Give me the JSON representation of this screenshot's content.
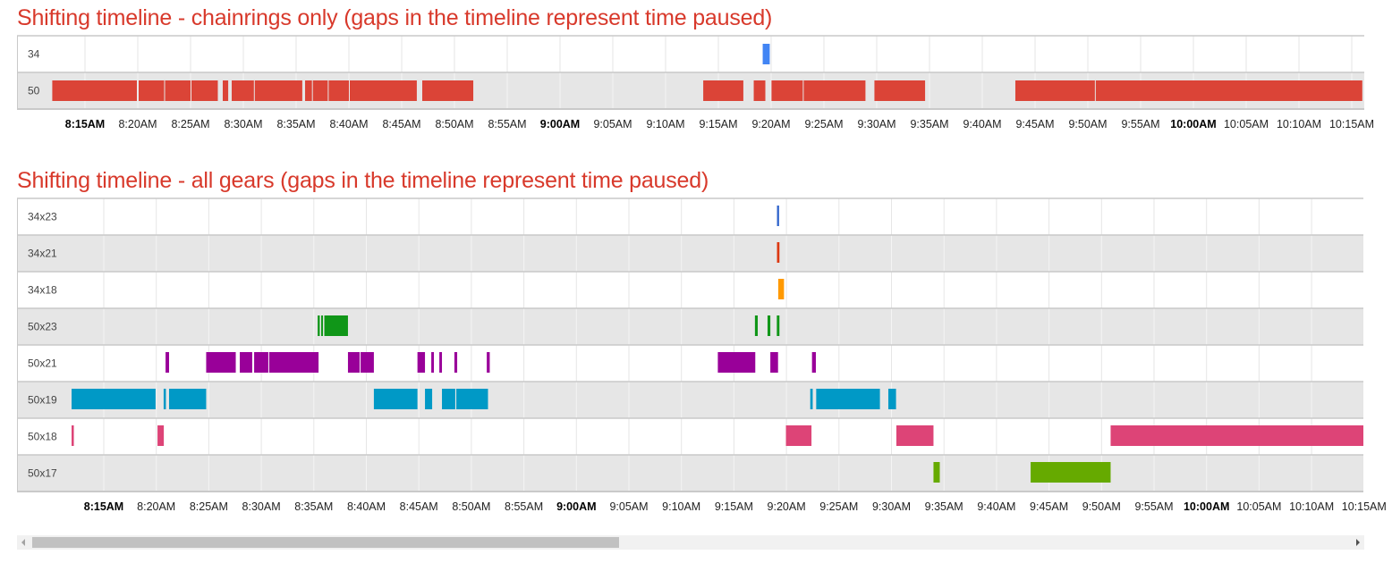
{
  "charts": [
    {
      "title": "Shifting timeline - chainrings only (gaps in the timeline represent time paused)",
      "rows": [
        {
          "label": "34",
          "color": "#4285f4",
          "bars": [
            [
              "9:19:12",
              "9:19:52"
            ]
          ]
        },
        {
          "label": "50",
          "color": "#db4437",
          "bars": [
            [
              "8:11:54",
              "8:19:55"
            ],
            [
              "8:20:05",
              "8:22:30"
            ],
            [
              "8:22:35",
              "8:25:00"
            ],
            [
              "8:25:05",
              "8:27:35"
            ],
            [
              "8:28:03",
              "8:28:34"
            ],
            [
              "8:28:54",
              "8:31:00"
            ],
            [
              "8:31:05",
              "8:35:35"
            ],
            [
              "8:35:51",
              "8:36:30"
            ],
            [
              "8:36:35",
              "8:38:00"
            ],
            [
              "8:38:05",
              "8:40:00"
            ],
            [
              "8:40:05",
              "8:46:26"
            ],
            [
              "8:46:57",
              "8:51:47"
            ],
            [
              "9:13:34",
              "9:17:22"
            ],
            [
              "9:18:21",
              "9:19:27"
            ],
            [
              "9:20:02",
              "9:23:00"
            ],
            [
              "9:23:05",
              "9:28:56"
            ],
            [
              "9:29:47",
              "9:34:35"
            ],
            [
              "9:43:08",
              "9:50:40"
            ],
            [
              "9:50:45",
              "10:16:00"
            ]
          ]
        }
      ],
      "axis": {
        "ticks": [
          "8:15AM",
          "8:20AM",
          "8:25AM",
          "8:30AM",
          "8:35AM",
          "8:40AM",
          "8:45AM",
          "8:50AM",
          "8:55AM",
          "9:00AM",
          "9:05AM",
          "9:10AM",
          "9:15AM",
          "9:20AM",
          "9:25AM",
          "9:30AM",
          "9:35AM",
          "9:40AM",
          "9:45AM",
          "9:50AM",
          "9:55AM",
          "10:00AM",
          "10:05AM",
          "10:10AM",
          "10:15AM"
        ],
        "bold_ticks": [
          "8:15AM",
          "9:00AM",
          "10:00AM"
        ]
      }
    },
    {
      "title": "Shifting timeline - all gears (gaps in the timeline represent time paused)",
      "rows": [
        {
          "label": "34x23",
          "color": "#3366cc",
          "bars": [
            [
              "9:19:06",
              "9:19:18"
            ]
          ]
        },
        {
          "label": "34x21",
          "color": "#dc3912",
          "bars": [
            [
              "9:19:06",
              "9:19:20"
            ]
          ]
        },
        {
          "label": "34x18",
          "color": "#ff9900",
          "bars": [
            [
              "9:19:13",
              "9:19:46"
            ]
          ]
        },
        {
          "label": "50x23",
          "color": "#109618",
          "bars": [
            [
              "8:35:22",
              "8:35:34"
            ],
            [
              "8:35:42",
              "8:35:52"
            ],
            [
              "8:36:00",
              "8:38:15"
            ],
            [
              "9:17:00",
              "9:17:16"
            ],
            [
              "9:18:12",
              "9:18:28"
            ],
            [
              "9:19:05",
              "9:19:20"
            ]
          ]
        },
        {
          "label": "50x21",
          "color": "#990099",
          "bars": [
            [
              "8:20:53",
              "8:21:13"
            ],
            [
              "8:24:45",
              "8:27:34"
            ],
            [
              "8:27:57",
              "8:29:08"
            ],
            [
              "8:29:19",
              "8:30:40"
            ],
            [
              "8:30:45",
              "8:35:27"
            ],
            [
              "8:38:15",
              "8:39:22"
            ],
            [
              "8:39:27",
              "8:40:43"
            ],
            [
              "8:44:52",
              "8:45:35"
            ],
            [
              "8:46:11",
              "8:46:26"
            ],
            [
              "8:46:57",
              "8:47:12"
            ],
            [
              "8:48:23",
              "8:48:39"
            ],
            [
              "8:51:28",
              "8:51:45"
            ],
            [
              "9:13:28",
              "9:17:02"
            ],
            [
              "9:18:28",
              "9:19:12"
            ],
            [
              "9:22:26",
              "9:22:48"
            ]
          ]
        },
        {
          "label": "50x19",
          "color": "#0099c6",
          "bars": [
            [
              "8:11:51",
              "8:19:56"
            ],
            [
              "8:20:42",
              "8:20:55"
            ],
            [
              "8:21:13",
              "8:24:45"
            ],
            [
              "8:40:43",
              "8:44:52"
            ],
            [
              "8:45:35",
              "8:46:16"
            ],
            [
              "8:47:12",
              "8:48:28"
            ],
            [
              "8:48:34",
              "8:51:35"
            ],
            [
              "9:22:16",
              "9:22:30"
            ],
            [
              "9:22:50",
              "9:28:54"
            ],
            [
              "9:29:42",
              "9:30:26"
            ]
          ]
        },
        {
          "label": "50x18",
          "color": "#dd4477",
          "bars": [
            [
              "8:11:56",
              "8:12:09"
            ],
            [
              "8:20:07",
              "8:20:43"
            ],
            [
              "9:19:57",
              "9:22:23"
            ],
            [
              "9:30:28",
              "9:34:00"
            ],
            [
              "9:50:52",
              "10:20:00"
            ]
          ]
        },
        {
          "label": "50x17",
          "color": "#66aa00",
          "bars": [
            [
              "9:34:00",
              "9:34:36"
            ],
            [
              "9:43:15",
              "9:50:52"
            ]
          ]
        }
      ],
      "axis": {
        "ticks": [
          "8:15AM",
          "8:20AM",
          "8:25AM",
          "8:30AM",
          "8:35AM",
          "8:40AM",
          "8:45AM",
          "8:50AM",
          "8:55AM",
          "9:00AM",
          "9:05AM",
          "9:10AM",
          "9:15AM",
          "9:20AM",
          "9:25AM",
          "9:30AM",
          "9:35AM",
          "9:40AM",
          "9:45AM",
          "9:50AM",
          "9:55AM",
          "10:00AM",
          "10:05AM",
          "10:10AM",
          "10:15AM"
        ],
        "bold_ticks": [
          "8:15AM",
          "9:00AM",
          "10:00AM"
        ]
      }
    }
  ],
  "chart_data": [
    {
      "type": "bar",
      "orientation": "horizontal-ranges",
      "title": "Shifting timeline - chainrings only (gaps in the timeline represent time paused)",
      "categories": [
        "34",
        "50"
      ],
      "xlim": [
        "8:11:47",
        "10:16:00"
      ],
      "grid": true
    },
    {
      "type": "bar",
      "orientation": "horizontal-ranges",
      "title": "Shifting timeline - all gears (gaps in the timeline represent time paused)",
      "categories": [
        "34x23",
        "34x21",
        "34x18",
        "50x23",
        "50x21",
        "50x19",
        "50x18",
        "50x17"
      ],
      "xlim": [
        "8:11:56",
        "10:15:00"
      ],
      "grid": true
    }
  ],
  "scrollbar": {
    "position_fraction": 0.0,
    "visible_fraction": 0.44
  }
}
